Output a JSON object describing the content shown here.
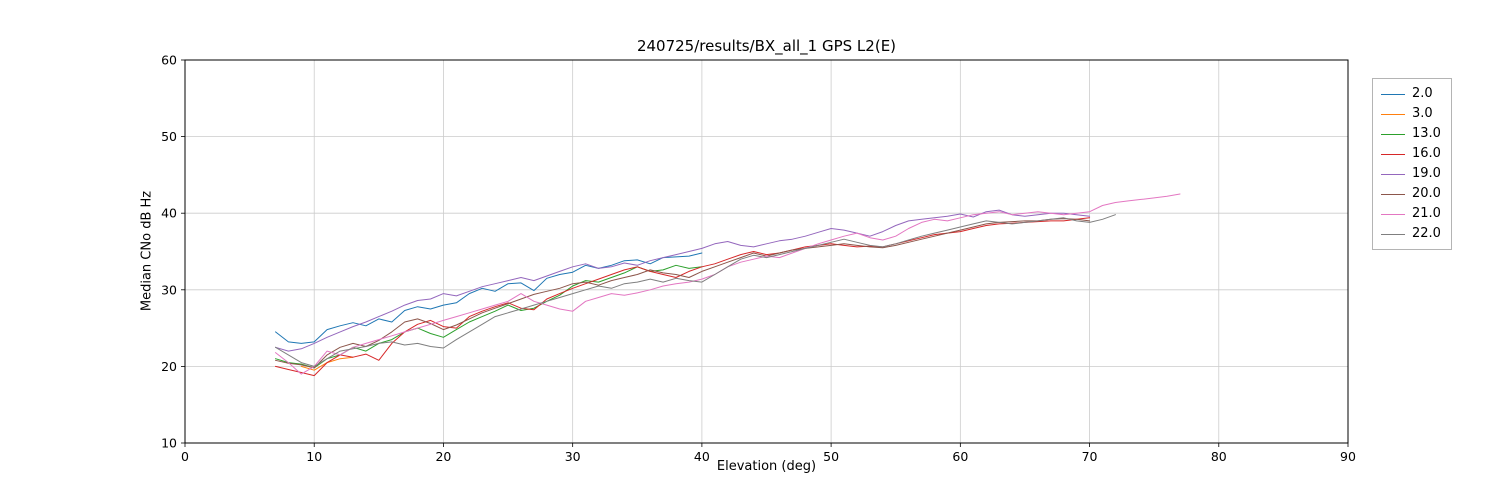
{
  "chart_data": {
    "type": "line",
    "title": "240725/results/BX_all_1 GPS L2(E)",
    "xlabel": "Elevation (deg)",
    "ylabel": "Median CNo dB Hz",
    "xlim": [
      0,
      90
    ],
    "ylim": [
      10,
      60
    ],
    "xticks": [
      0,
      10,
      20,
      30,
      40,
      50,
      60,
      70,
      80,
      90
    ],
    "yticks": [
      10,
      20,
      30,
      40,
      50,
      60
    ],
    "grid": true,
    "legend_position": "outside upper right",
    "series": [
      {
        "name": "2.0",
        "color": "#1f77b4",
        "x": [
          7,
          8,
          9,
          10,
          11,
          12,
          13,
          14,
          15,
          16,
          17,
          18,
          19,
          20,
          21,
          22,
          23,
          24,
          25,
          26,
          27,
          28,
          29,
          30,
          31,
          32,
          33,
          34,
          35,
          36,
          37,
          38,
          39,
          40
        ],
        "y": [
          24.5,
          23.2,
          23.0,
          23.2,
          24.8,
          25.3,
          25.7,
          25.3,
          26.2,
          25.8,
          27.3,
          27.8,
          27.5,
          28.0,
          28.3,
          29.5,
          30.2,
          29.8,
          30.8,
          30.9,
          29.9,
          31.5,
          32.0,
          32.3,
          33.2,
          32.8,
          33.2,
          33.8,
          33.9,
          33.4,
          34.2,
          34.3,
          34.4,
          34.8
        ]
      },
      {
        "name": "3.0",
        "color": "#ff7f0e",
        "x": [
          9,
          10,
          11,
          12,
          13
        ],
        "y": [
          20.0,
          19.5,
          20.5,
          21.0,
          21.2
        ]
      },
      {
        "name": "13.0",
        "color": "#2ca02c",
        "x": [
          7,
          8,
          9,
          10,
          11,
          12,
          13,
          14,
          15,
          16,
          17,
          18,
          19,
          20,
          21,
          22,
          23,
          24,
          25,
          26,
          27,
          28,
          29,
          30,
          31,
          32,
          33,
          34,
          35,
          36,
          37,
          38,
          39,
          40
        ],
        "y": [
          21.0,
          20.5,
          20.3,
          19.8,
          21.0,
          21.5,
          22.5,
          22.0,
          23.0,
          23.5,
          24.5,
          25.0,
          24.3,
          23.8,
          24.8,
          25.8,
          26.5,
          27.2,
          28.0,
          27.3,
          27.6,
          28.5,
          29.3,
          30.5,
          31.2,
          31.0,
          31.6,
          32.2,
          33.0,
          32.4,
          32.6,
          33.2,
          32.8,
          33.0
        ]
      },
      {
        "name": "16.0",
        "color": "#d62728",
        "x": [
          7,
          8,
          9,
          10,
          11,
          12,
          13,
          14,
          15,
          16,
          17,
          18,
          19,
          20,
          21,
          22,
          23,
          24,
          25,
          26,
          27,
          28,
          29,
          30,
          31,
          32,
          33,
          34,
          35,
          36,
          37,
          38,
          39,
          40,
          41,
          42,
          43,
          44,
          45,
          46,
          47,
          48,
          49,
          50,
          51,
          52,
          53,
          54,
          55,
          56,
          57,
          58,
          59,
          60,
          61,
          62,
          63,
          64,
          65,
          66,
          67,
          68,
          69,
          70
        ],
        "y": [
          20.0,
          19.6,
          19.2,
          18.8,
          20.5,
          21.5,
          21.2,
          21.6,
          20.8,
          23.0,
          24.5,
          25.5,
          26.0,
          25.2,
          25.0,
          26.5,
          27.2,
          27.8,
          28.3,
          27.6,
          27.4,
          28.8,
          29.5,
          30.2,
          30.8,
          31.4,
          32.0,
          32.6,
          33.0,
          32.4,
          32.0,
          31.6,
          32.4,
          33.0,
          33.4,
          34.0,
          34.6,
          35.0,
          34.6,
          34.8,
          35.2,
          35.6,
          35.8,
          36.0,
          35.8,
          35.6,
          35.7,
          35.6,
          36.0,
          36.4,
          36.8,
          37.2,
          37.4,
          37.6,
          38.0,
          38.4,
          38.6,
          38.7,
          38.8,
          38.9,
          39.0,
          39.0,
          39.2,
          39.4
        ]
      },
      {
        "name": "19.0",
        "color": "#9467bd",
        "x": [
          7,
          8,
          9,
          10,
          11,
          12,
          13,
          14,
          15,
          16,
          17,
          18,
          19,
          20,
          21,
          22,
          23,
          24,
          25,
          26,
          27,
          28,
          29,
          30,
          31,
          32,
          33,
          34,
          35,
          36,
          37,
          38,
          39,
          40,
          41,
          42,
          43,
          44,
          45,
          46,
          47,
          48,
          49,
          50,
          51,
          52,
          53,
          54,
          55,
          56,
          57,
          58,
          59,
          60,
          61,
          62,
          63,
          64,
          65,
          66,
          67,
          68,
          69,
          70
        ],
        "y": [
          22.5,
          22.0,
          22.3,
          23.0,
          23.8,
          24.5,
          25.2,
          25.8,
          26.5,
          27.2,
          28.0,
          28.6,
          28.8,
          29.5,
          29.2,
          29.8,
          30.4,
          30.8,
          31.2,
          31.6,
          31.2,
          31.8,
          32.4,
          33.0,
          33.4,
          32.8,
          33.0,
          33.5,
          33.2,
          33.8,
          34.2,
          34.6,
          35.0,
          35.4,
          36.0,
          36.3,
          35.8,
          35.6,
          36.0,
          36.4,
          36.6,
          37.0,
          37.5,
          38.0,
          37.8,
          37.4,
          37.0,
          37.6,
          38.4,
          39.0,
          39.2,
          39.4,
          39.6,
          39.9,
          39.5,
          40.2,
          40.4,
          39.8,
          39.6,
          39.8,
          40.0,
          40.0,
          39.8,
          39.6
        ]
      },
      {
        "name": "20.0",
        "color": "#8c564b",
        "x": [
          7,
          8,
          9,
          10,
          11,
          12,
          13,
          14,
          15,
          16,
          17,
          18,
          19,
          20,
          21,
          22,
          23,
          24,
          25,
          26,
          27,
          28,
          29,
          30,
          31,
          32,
          33,
          34,
          35,
          36,
          37,
          38,
          39,
          40,
          41,
          42,
          43,
          44,
          45,
          46,
          47,
          48,
          49,
          50,
          51,
          52,
          53,
          54,
          55,
          56,
          57,
          58,
          59,
          60,
          61,
          62,
          63,
          64,
          65,
          66,
          67,
          68,
          69,
          70
        ],
        "y": [
          20.8,
          20.4,
          20.2,
          19.8,
          21.5,
          22.5,
          23.0,
          22.6,
          23.4,
          24.5,
          25.8,
          26.2,
          25.6,
          24.8,
          25.4,
          26.2,
          27.0,
          27.6,
          28.2,
          28.8,
          29.4,
          29.8,
          30.2,
          30.8,
          31.0,
          30.6,
          31.2,
          31.6,
          32.0,
          32.6,
          32.2,
          32.0,
          31.6,
          32.4,
          33.0,
          33.6,
          34.2,
          34.8,
          34.4,
          34.8,
          35.2,
          35.4,
          35.6,
          35.8,
          36.0,
          35.8,
          35.6,
          35.5,
          35.8,
          36.2,
          36.6,
          37.0,
          37.4,
          37.8,
          38.2,
          38.6,
          38.8,
          38.9,
          39.0,
          39.0,
          39.2,
          39.3,
          39.2,
          39.0
        ]
      },
      {
        "name": "21.0",
        "color": "#e377c2",
        "x": [
          7,
          8,
          9,
          10,
          11,
          12,
          13,
          14,
          15,
          16,
          17,
          18,
          19,
          20,
          21,
          22,
          23,
          24,
          25,
          26,
          27,
          28,
          29,
          30,
          31,
          32,
          33,
          34,
          35,
          36,
          37,
          38,
          39,
          40,
          41,
          42,
          43,
          44,
          45,
          46,
          47,
          48,
          49,
          50,
          51,
          52,
          53,
          54,
          55,
          56,
          57,
          58,
          59,
          60,
          61,
          62,
          63,
          64,
          65,
          66,
          67,
          68,
          69,
          70,
          71,
          72,
          73,
          74,
          75,
          76,
          77
        ],
        "y": [
          21.8,
          20.5,
          19.0,
          20.0,
          22.0,
          21.5,
          22.5,
          23.0,
          23.5,
          24.0,
          24.5,
          25.0,
          25.5,
          26.0,
          26.5,
          27.0,
          27.5,
          28.0,
          28.5,
          29.5,
          28.5,
          28.0,
          27.5,
          27.2,
          28.5,
          29.0,
          29.5,
          29.3,
          29.6,
          30.0,
          30.5,
          30.8,
          31.0,
          31.4,
          32.0,
          33.0,
          33.6,
          34.0,
          34.4,
          34.2,
          34.8,
          35.4,
          36.0,
          36.5,
          37.0,
          37.4,
          36.8,
          36.5,
          37.0,
          38.0,
          38.8,
          39.2,
          39.0,
          39.4,
          39.8,
          40.0,
          40.2,
          39.8,
          40.0,
          40.2,
          40.0,
          39.8,
          40.0,
          40.2,
          41.0,
          41.4,
          41.6,
          41.8,
          42.0,
          42.2,
          42.5
        ]
      },
      {
        "name": "22.0",
        "color": "#7f7f7f",
        "x": [
          7,
          8,
          9,
          10,
          11,
          12,
          13,
          14,
          15,
          16,
          17,
          18,
          19,
          20,
          21,
          22,
          23,
          24,
          25,
          26,
          27,
          28,
          29,
          30,
          31,
          32,
          33,
          34,
          35,
          36,
          37,
          38,
          39,
          40,
          41,
          42,
          43,
          44,
          45,
          46,
          47,
          48,
          49,
          50,
          51,
          52,
          53,
          54,
          55,
          56,
          57,
          58,
          59,
          60,
          61,
          62,
          63,
          64,
          65,
          66,
          67,
          68,
          69,
          70,
          71,
          72
        ],
        "y": [
          22.5,
          21.5,
          20.5,
          20.0,
          21.0,
          22.0,
          22.3,
          22.6,
          23.0,
          23.2,
          22.8,
          23.0,
          22.6,
          22.4,
          23.5,
          24.5,
          25.5,
          26.5,
          27.0,
          27.5,
          28.0,
          28.5,
          29.0,
          29.5,
          30.0,
          30.5,
          30.2,
          30.8,
          31.0,
          31.4,
          31.0,
          31.5,
          31.2,
          31.0,
          32.0,
          33.0,
          34.0,
          34.5,
          34.2,
          34.6,
          35.0,
          35.4,
          35.8,
          36.2,
          36.6,
          36.2,
          35.8,
          35.6,
          36.0,
          36.5,
          37.0,
          37.4,
          37.8,
          38.2,
          38.6,
          39.0,
          38.8,
          38.6,
          38.8,
          39.0,
          39.2,
          39.4,
          39.0,
          38.8,
          39.2,
          39.8
        ]
      }
    ],
    "style": {
      "grid_color": "#cccccc",
      "frame_color": "#000000",
      "background": "#ffffff",
      "line_width": 1
    }
  }
}
